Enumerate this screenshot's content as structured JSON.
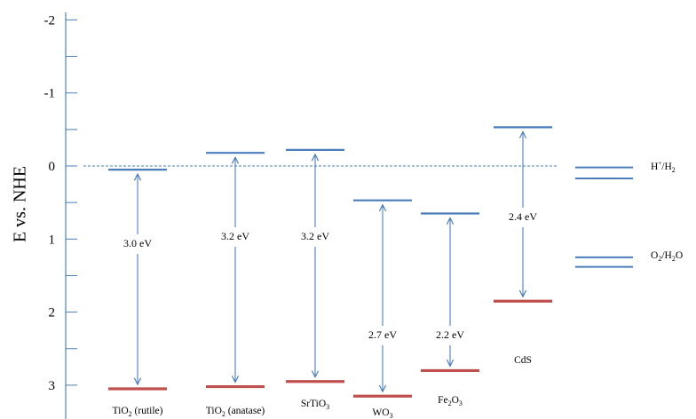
{
  "axis": {
    "title": "E vs. NHE",
    "ticks": [
      -2,
      -1,
      0,
      1,
      2,
      3
    ],
    "ylim": [
      -2.15,
      3.2
    ],
    "axis_color": "#4a7ebb"
  },
  "colors": {
    "conduction_band": "#4a7ebb",
    "valence_band": "#c0504d",
    "arrow": "#4a7ebb",
    "reference_line": "#4a7ebb"
  },
  "reference_line": {
    "potential": 0,
    "style": "dashed"
  },
  "materials": [
    {
      "label_main": "TiO",
      "label_sub": "2",
      "label_rest": " (rutile)",
      "cb": 0.05,
      "vb": 3.05,
      "gap_label": "3.0 eV"
    },
    {
      "label_main": "TiO",
      "label_sub": "2",
      "label_rest": " (anatase)",
      "cb": -0.18,
      "vb": 3.02,
      "gap_label": "3.2 eV"
    },
    {
      "label_main": "SrTiO",
      "label_sub": "3",
      "label_rest": "",
      "cb": -0.22,
      "vb": 2.95,
      "gap_label": "3.2 eV"
    },
    {
      "label_main": "WO",
      "label_sub": "3",
      "label_rest": "",
      "cb": 0.47,
      "vb": 3.15,
      "gap_label": "2.7 eV"
    },
    {
      "label_main": "Fe",
      "label_sub": "2",
      "label_rest": "O",
      "label_sub2": "3",
      "cb": 0.65,
      "vb": 2.8,
      "gap_label": "2.2 eV"
    },
    {
      "label_main": "CdS",
      "label_sub": "",
      "label_rest": "",
      "cb": -0.53,
      "vb": 1.85,
      "gap_label": "2.4 eV"
    }
  ],
  "redox_couples": [
    {
      "label_main": "H",
      "label_sup": "+",
      "label_rest": "/H",
      "label_sub": "2",
      "lines": [
        0.02,
        0.17
      ]
    },
    {
      "label_main": "O",
      "label_sub": "2",
      "label_rest": "/H",
      "label_sub2": "2",
      "label_rest2": "O",
      "lines": [
        1.25,
        1.38
      ]
    }
  ]
}
